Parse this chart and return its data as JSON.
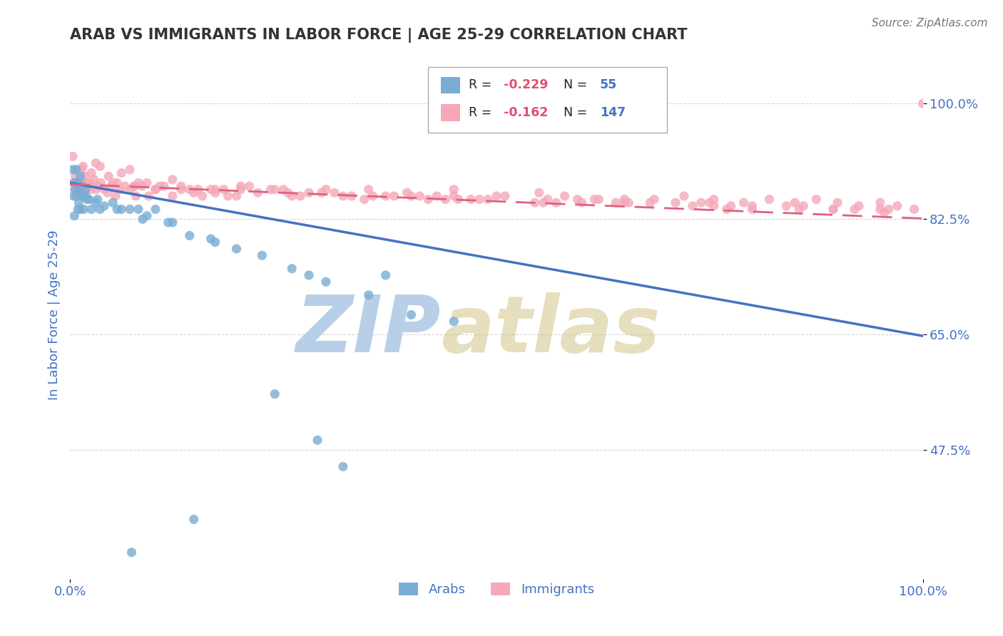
{
  "title": "ARAB VS IMMIGRANTS IN LABOR FORCE | AGE 25-29 CORRELATION CHART",
  "source_text": "Source: ZipAtlas.com",
  "ylabel": "In Labor Force | Age 25-29",
  "xlim": [
    0.0,
    1.0
  ],
  "ylim": [
    0.28,
    1.08
  ],
  "xtick_labels": [
    "0.0%",
    "100.0%"
  ],
  "xtick_positions": [
    0.0,
    1.0
  ],
  "ytick_labels": [
    "47.5%",
    "65.0%",
    "82.5%",
    "100.0%"
  ],
  "ytick_positions": [
    0.475,
    0.65,
    0.825,
    1.0
  ],
  "arab_R": -0.229,
  "arab_N": 55,
  "imm_R": -0.162,
  "imm_N": 147,
  "arab_color": "#7aadd4",
  "imm_color": "#f4a8b8",
  "arab_line_color": "#4472c4",
  "imm_line_color": "#e06080",
  "title_color": "#333333",
  "axis_label_color": "#4472c4",
  "legend_R_color": "#222222",
  "legend_N_color": "#4472c4",
  "background_color": "#ffffff",
  "grid_color": "#cccccc",
  "arab_x": [
    0.003,
    0.004,
    0.005,
    0.005,
    0.006,
    0.007,
    0.007,
    0.008,
    0.009,
    0.009,
    0.01,
    0.01,
    0.011,
    0.012,
    0.012,
    0.013,
    0.014,
    0.015,
    0.016,
    0.018,
    0.02,
    0.022,
    0.025,
    0.03,
    0.035,
    0.04,
    0.05,
    0.06,
    0.07,
    0.08,
    0.09,
    0.1,
    0.12,
    0.14,
    0.165,
    0.195,
    0.225,
    0.26,
    0.3,
    0.35,
    0.4,
    0.45,
    0.37,
    0.28,
    0.17,
    0.115,
    0.085,
    0.055,
    0.032,
    0.018,
    0.24,
    0.29,
    0.32,
    0.145,
    0.072
  ],
  "arab_y": [
    0.9,
    0.86,
    0.88,
    0.83,
    0.87,
    0.9,
    0.86,
    0.88,
    0.84,
    0.88,
    0.87,
    0.85,
    0.87,
    0.84,
    0.89,
    0.86,
    0.875,
    0.86,
    0.84,
    0.87,
    0.855,
    0.855,
    0.84,
    0.85,
    0.84,
    0.845,
    0.85,
    0.84,
    0.84,
    0.84,
    0.83,
    0.84,
    0.82,
    0.8,
    0.795,
    0.78,
    0.77,
    0.75,
    0.73,
    0.71,
    0.68,
    0.67,
    0.74,
    0.74,
    0.79,
    0.82,
    0.825,
    0.84,
    0.855,
    0.86,
    0.56,
    0.49,
    0.45,
    0.37,
    0.32
  ],
  "imm_x": [
    0.003,
    0.004,
    0.005,
    0.006,
    0.007,
    0.008,
    0.009,
    0.01,
    0.011,
    0.012,
    0.013,
    0.014,
    0.015,
    0.016,
    0.017,
    0.018,
    0.019,
    0.02,
    0.022,
    0.024,
    0.026,
    0.028,
    0.03,
    0.033,
    0.036,
    0.04,
    0.044,
    0.048,
    0.053,
    0.058,
    0.064,
    0.07,
    0.077,
    0.084,
    0.092,
    0.1,
    0.11,
    0.12,
    0.13,
    0.14,
    0.155,
    0.17,
    0.185,
    0.2,
    0.22,
    0.24,
    0.26,
    0.28,
    0.3,
    0.32,
    0.345,
    0.37,
    0.395,
    0.42,
    0.45,
    0.48,
    0.51,
    0.545,
    0.58,
    0.615,
    0.65,
    0.685,
    0.72,
    0.755,
    0.79,
    0.82,
    0.85,
    0.875,
    0.9,
    0.925,
    0.95,
    0.97,
    0.99,
    1.0,
    0.15,
    0.35,
    0.45,
    0.55,
    0.65,
    0.75,
    0.03,
    0.06,
    0.09,
    0.12,
    0.18,
    0.21,
    0.25,
    0.31,
    0.38,
    0.44,
    0.5,
    0.56,
    0.62,
    0.68,
    0.74,
    0.8,
    0.86,
    0.92,
    0.96,
    0.045,
    0.075,
    0.105,
    0.145,
    0.195,
    0.235,
    0.27,
    0.33,
    0.41,
    0.49,
    0.57,
    0.64,
    0.71,
    0.775,
    0.84,
    0.895,
    0.95,
    0.055,
    0.165,
    0.255,
    0.355,
    0.455,
    0.555,
    0.655,
    0.755,
    0.855,
    0.955,
    0.08,
    0.2,
    0.4,
    0.6,
    0.8,
    0.13,
    0.43,
    0.73,
    0.295,
    0.595,
    0.895,
    0.17,
    0.47,
    0.77,
    0.025,
    0.05,
    0.075,
    0.1,
    0.015,
    0.035,
    0.07
  ],
  "imm_y": [
    0.92,
    0.88,
    0.87,
    0.89,
    0.9,
    0.88,
    0.86,
    0.875,
    0.885,
    0.87,
    0.9,
    0.88,
    0.865,
    0.875,
    0.89,
    0.87,
    0.88,
    0.875,
    0.88,
    0.87,
    0.875,
    0.885,
    0.87,
    0.875,
    0.88,
    0.87,
    0.865,
    0.875,
    0.86,
    0.87,
    0.875,
    0.87,
    0.86,
    0.875,
    0.86,
    0.87,
    0.875,
    0.86,
    0.87,
    0.87,
    0.86,
    0.865,
    0.86,
    0.875,
    0.865,
    0.87,
    0.86,
    0.865,
    0.87,
    0.86,
    0.855,
    0.86,
    0.865,
    0.855,
    0.86,
    0.855,
    0.86,
    0.85,
    0.86,
    0.855,
    0.85,
    0.855,
    0.86,
    0.855,
    0.85,
    0.855,
    0.85,
    0.855,
    0.85,
    0.845,
    0.85,
    0.845,
    0.84,
    1.0,
    0.87,
    0.87,
    0.87,
    0.865,
    0.855,
    0.85,
    0.91,
    0.895,
    0.88,
    0.885,
    0.87,
    0.875,
    0.87,
    0.865,
    0.86,
    0.855,
    0.86,
    0.855,
    0.855,
    0.85,
    0.85,
    0.845,
    0.845,
    0.84,
    0.84,
    0.89,
    0.875,
    0.875,
    0.865,
    0.86,
    0.87,
    0.86,
    0.86,
    0.86,
    0.855,
    0.85,
    0.85,
    0.85,
    0.845,
    0.845,
    0.84,
    0.84,
    0.88,
    0.87,
    0.865,
    0.86,
    0.855,
    0.85,
    0.85,
    0.845,
    0.84,
    0.835,
    0.88,
    0.87,
    0.86,
    0.85,
    0.84,
    0.875,
    0.86,
    0.845,
    0.865,
    0.855,
    0.84,
    0.87,
    0.855,
    0.84,
    0.895,
    0.88,
    0.875,
    0.87,
    0.905,
    0.905,
    0.9
  ],
  "arab_line_start_y": 0.88,
  "arab_line_end_y": 0.648,
  "imm_line_start_y": 0.878,
  "imm_line_end_y": 0.826
}
